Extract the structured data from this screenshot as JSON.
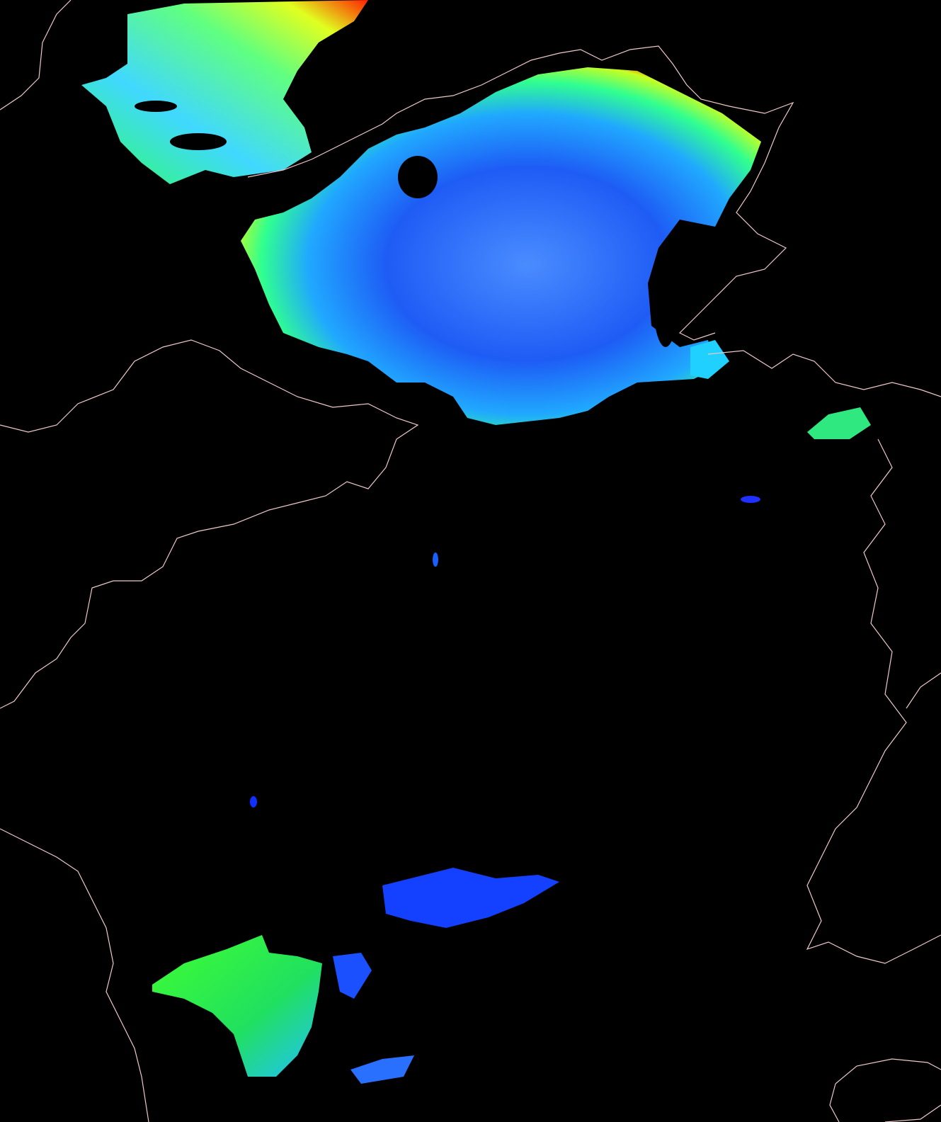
{
  "map": {
    "background": "#000000",
    "coastline_color": "#f0c8c8",
    "colormap": [
      "#0000ff",
      "#1a5cff",
      "#00c8ff",
      "#00ff80",
      "#c8ff00",
      "#ff8000",
      "#ff0000"
    ]
  }
}
